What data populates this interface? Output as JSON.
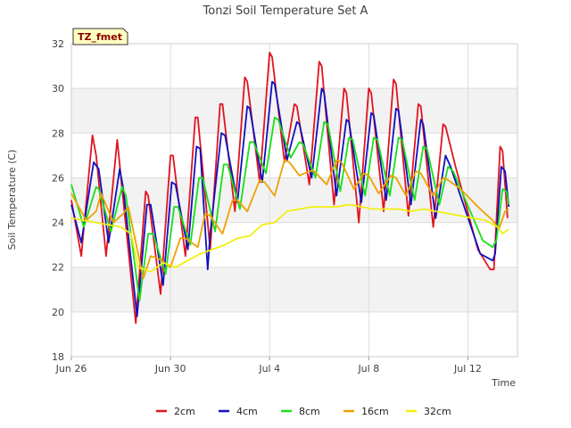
{
  "chart_data": {
    "type": "line",
    "title": "Tonzi Soil Temperature Set A",
    "xlabel": "Time",
    "ylabel": "Soil Temperature (C)",
    "site_label": "TZ_fmet",
    "x_unit": "day",
    "xlim": [
      0,
      18
    ],
    "ylim": [
      18,
      32
    ],
    "yticks": [
      18,
      20,
      22,
      24,
      26,
      28,
      30,
      32
    ],
    "xticks": [
      {
        "x": 0,
        "label": "Jun 26"
      },
      {
        "x": 4,
        "label": "Jun 30"
      },
      {
        "x": 8,
        "label": "Jul 4"
      },
      {
        "x": 12,
        "label": "Jul 8"
      },
      {
        "x": 16,
        "label": "Jul 12"
      }
    ],
    "grid": true,
    "legend_position": "bottom",
    "series": [
      {
        "name": "2cm",
        "color": "#e0141e",
        "points": [
          [
            0.0,
            25.0
          ],
          [
            0.4,
            22.5
          ],
          [
            0.85,
            27.9
          ],
          [
            1.0,
            27.0
          ],
          [
            1.4,
            22.5
          ],
          [
            1.85,
            27.7
          ],
          [
            2.0,
            26.0
          ],
          [
            2.6,
            19.5
          ],
          [
            3.0,
            25.4
          ],
          [
            3.1,
            25.2
          ],
          [
            3.6,
            20.8
          ],
          [
            4.0,
            27.0
          ],
          [
            4.1,
            27.0
          ],
          [
            4.6,
            22.5
          ],
          [
            5.0,
            28.7
          ],
          [
            5.1,
            28.7
          ],
          [
            5.6,
            22.8
          ],
          [
            6.0,
            29.3
          ],
          [
            6.1,
            29.3
          ],
          [
            6.6,
            24.5
          ],
          [
            7.0,
            30.5
          ],
          [
            7.1,
            30.3
          ],
          [
            7.6,
            25.8
          ],
          [
            8.0,
            31.6
          ],
          [
            8.1,
            31.4
          ],
          [
            8.6,
            26.7
          ],
          [
            9.0,
            29.3
          ],
          [
            9.1,
            29.2
          ],
          [
            9.6,
            25.7
          ],
          [
            10.0,
            31.2
          ],
          [
            10.1,
            31.0
          ],
          [
            10.6,
            24.8
          ],
          [
            11.0,
            30.0
          ],
          [
            11.1,
            29.8
          ],
          [
            11.6,
            24.0
          ],
          [
            12.0,
            30.0
          ],
          [
            12.1,
            29.8
          ],
          [
            12.6,
            24.5
          ],
          [
            13.0,
            30.4
          ],
          [
            13.1,
            30.2
          ],
          [
            13.6,
            24.3
          ],
          [
            14.0,
            29.3
          ],
          [
            14.1,
            29.2
          ],
          [
            14.6,
            23.8
          ],
          [
            15.0,
            28.4
          ],
          [
            15.1,
            28.3
          ],
          [
            15.5,
            26.5
          ],
          [
            16.4,
            22.8
          ],
          [
            16.9,
            21.9
          ],
          [
            17.05,
            21.9
          ],
          [
            17.3,
            27.4
          ],
          [
            17.4,
            27.2
          ],
          [
            17.6,
            24.2
          ]
        ]
      },
      {
        "name": "4cm",
        "color": "#1010c0",
        "points": [
          [
            0.0,
            24.8
          ],
          [
            0.4,
            23.1
          ],
          [
            0.9,
            26.7
          ],
          [
            1.1,
            26.4
          ],
          [
            1.5,
            23.1
          ],
          [
            1.95,
            26.4
          ],
          [
            2.1,
            25.5
          ],
          [
            2.65,
            19.8
          ],
          [
            3.05,
            24.8
          ],
          [
            3.2,
            24.8
          ],
          [
            3.7,
            21.2
          ],
          [
            4.05,
            25.8
          ],
          [
            4.2,
            25.7
          ],
          [
            4.7,
            22.8
          ],
          [
            5.05,
            27.4
          ],
          [
            5.2,
            27.3
          ],
          [
            5.5,
            21.9
          ],
          [
            5.6,
            23.5
          ],
          [
            6.05,
            28.0
          ],
          [
            6.2,
            27.9
          ],
          [
            6.7,
            24.9
          ],
          [
            7.1,
            29.2
          ],
          [
            7.2,
            29.1
          ],
          [
            7.7,
            25.8
          ],
          [
            8.1,
            30.3
          ],
          [
            8.2,
            30.2
          ],
          [
            8.7,
            26.8
          ],
          [
            9.1,
            28.5
          ],
          [
            9.2,
            28.4
          ],
          [
            9.7,
            26.0
          ],
          [
            10.1,
            30.0
          ],
          [
            10.2,
            29.8
          ],
          [
            10.7,
            25.2
          ],
          [
            11.1,
            28.6
          ],
          [
            11.2,
            28.5
          ],
          [
            11.7,
            24.9
          ],
          [
            12.1,
            28.9
          ],
          [
            12.2,
            28.8
          ],
          [
            12.7,
            25.0
          ],
          [
            13.1,
            29.1
          ],
          [
            13.2,
            29.0
          ],
          [
            13.7,
            24.8
          ],
          [
            14.1,
            28.6
          ],
          [
            14.2,
            28.4
          ],
          [
            14.7,
            24.2
          ],
          [
            15.1,
            27.0
          ],
          [
            15.3,
            26.5
          ],
          [
            16.5,
            22.6
          ],
          [
            17.0,
            22.3
          ],
          [
            17.1,
            22.6
          ],
          [
            17.35,
            26.5
          ],
          [
            17.5,
            26.3
          ],
          [
            17.65,
            24.7
          ]
        ]
      },
      {
        "name": "8cm",
        "color": "#18e018",
        "points": [
          [
            0.0,
            25.7
          ],
          [
            0.5,
            23.8
          ],
          [
            1.0,
            25.6
          ],
          [
            1.1,
            25.5
          ],
          [
            1.6,
            23.6
          ],
          [
            2.05,
            25.6
          ],
          [
            2.2,
            25.2
          ],
          [
            2.75,
            20.5
          ],
          [
            3.1,
            23.5
          ],
          [
            3.3,
            23.5
          ],
          [
            3.8,
            21.7
          ],
          [
            4.15,
            24.7
          ],
          [
            4.3,
            24.7
          ],
          [
            4.8,
            23.0
          ],
          [
            5.15,
            26.0
          ],
          [
            5.3,
            26.0
          ],
          [
            5.8,
            23.6
          ],
          [
            6.15,
            26.6
          ],
          [
            6.3,
            26.6
          ],
          [
            6.8,
            24.6
          ],
          [
            7.2,
            27.6
          ],
          [
            7.35,
            27.6
          ],
          [
            7.85,
            26.2
          ],
          [
            8.2,
            28.7
          ],
          [
            8.35,
            28.6
          ],
          [
            8.85,
            26.9
          ],
          [
            9.2,
            27.6
          ],
          [
            9.35,
            27.5
          ],
          [
            9.85,
            26.0
          ],
          [
            10.2,
            28.5
          ],
          [
            10.35,
            28.4
          ],
          [
            10.85,
            25.4
          ],
          [
            11.2,
            27.8
          ],
          [
            11.35,
            27.7
          ],
          [
            11.85,
            25.2
          ],
          [
            12.2,
            27.8
          ],
          [
            12.35,
            27.7
          ],
          [
            12.85,
            25.2
          ],
          [
            13.2,
            27.8
          ],
          [
            13.35,
            27.7
          ],
          [
            13.85,
            25.0
          ],
          [
            14.2,
            27.4
          ],
          [
            14.35,
            27.3
          ],
          [
            14.85,
            24.8
          ],
          [
            15.2,
            26.5
          ],
          [
            15.4,
            26.3
          ],
          [
            16.6,
            23.2
          ],
          [
            17.0,
            22.9
          ],
          [
            17.15,
            23.2
          ],
          [
            17.4,
            25.5
          ],
          [
            17.55,
            25.4
          ],
          [
            17.65,
            24.8
          ]
        ]
      },
      {
        "name": "16cm",
        "color": "#f0a000",
        "points": [
          [
            0.0,
            25.3
          ],
          [
            0.6,
            24.1
          ],
          [
            1.0,
            24.5
          ],
          [
            1.2,
            25.3
          ],
          [
            1.7,
            24.0
          ],
          [
            2.1,
            24.4
          ],
          [
            2.3,
            24.7
          ],
          [
            2.9,
            21.5
          ],
          [
            3.2,
            22.5
          ],
          [
            3.5,
            22.4
          ],
          [
            4.0,
            22.0
          ],
          [
            4.4,
            23.3
          ],
          [
            4.6,
            23.3
          ],
          [
            5.1,
            22.9
          ],
          [
            5.4,
            24.4
          ],
          [
            5.6,
            24.3
          ],
          [
            6.1,
            23.5
          ],
          [
            6.5,
            25.0
          ],
          [
            6.7,
            25.0
          ],
          [
            7.1,
            24.5
          ],
          [
            7.6,
            25.9
          ],
          [
            7.8,
            25.8
          ],
          [
            8.2,
            25.2
          ],
          [
            8.6,
            26.8
          ],
          [
            8.8,
            26.7
          ],
          [
            9.2,
            26.1
          ],
          [
            9.6,
            26.3
          ],
          [
            9.8,
            26.3
          ],
          [
            10.3,
            25.7
          ],
          [
            10.7,
            26.8
          ],
          [
            10.9,
            26.7
          ],
          [
            11.4,
            25.5
          ],
          [
            11.8,
            26.2
          ],
          [
            12.0,
            26.1
          ],
          [
            12.4,
            25.3
          ],
          [
            12.9,
            26.1
          ],
          [
            13.1,
            26.0
          ],
          [
            13.5,
            25.2
          ],
          [
            13.9,
            26.3
          ],
          [
            14.1,
            26.2
          ],
          [
            14.6,
            25.2
          ],
          [
            15.0,
            26.0
          ],
          [
            15.2,
            25.9
          ],
          [
            15.7,
            25.5
          ],
          [
            16.5,
            24.6
          ],
          [
            17.0,
            24.1
          ],
          [
            17.25,
            23.7
          ],
          [
            17.5,
            24.5
          ],
          [
            17.65,
            24.6
          ]
        ]
      },
      {
        "name": "32cm",
        "color": "#f0f010",
        "points": [
          [
            0.0,
            24.2
          ],
          [
            0.5,
            24.1
          ],
          [
            1.0,
            24.0
          ],
          [
            1.5,
            23.9
          ],
          [
            2.0,
            23.8
          ],
          [
            2.4,
            23.5
          ],
          [
            2.7,
            22.0
          ],
          [
            3.2,
            21.8
          ],
          [
            3.7,
            22.2
          ],
          [
            4.2,
            22.0
          ],
          [
            4.7,
            22.3
          ],
          [
            5.2,
            22.6
          ],
          [
            5.7,
            22.8
          ],
          [
            6.2,
            23.0
          ],
          [
            6.7,
            23.3
          ],
          [
            7.2,
            23.4
          ],
          [
            7.7,
            23.9
          ],
          [
            8.2,
            24.0
          ],
          [
            8.7,
            24.5
          ],
          [
            9.2,
            24.6
          ],
          [
            9.7,
            24.7
          ],
          [
            10.2,
            24.7
          ],
          [
            10.7,
            24.7
          ],
          [
            11.2,
            24.8
          ],
          [
            11.7,
            24.7
          ],
          [
            12.2,
            24.6
          ],
          [
            12.7,
            24.6
          ],
          [
            13.2,
            24.6
          ],
          [
            13.7,
            24.5
          ],
          [
            14.2,
            24.6
          ],
          [
            14.7,
            24.5
          ],
          [
            15.2,
            24.4
          ],
          [
            15.7,
            24.3
          ],
          [
            16.2,
            24.2
          ],
          [
            16.7,
            24.1
          ],
          [
            17.2,
            23.8
          ],
          [
            17.4,
            23.5
          ],
          [
            17.65,
            23.7
          ]
        ]
      }
    ]
  }
}
